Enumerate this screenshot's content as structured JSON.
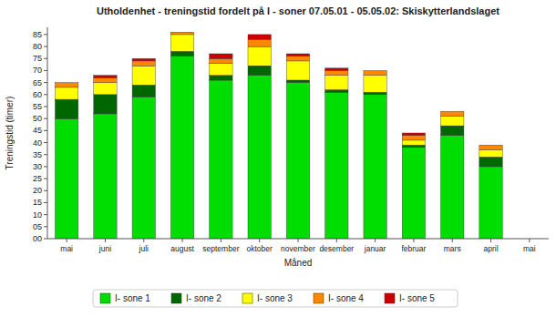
{
  "chart_data": {
    "type": "bar",
    "stacked": true,
    "title": "Utholdenhet - treningstid fordelt på I - soner 07.05.01 - 05.05.02: Skiskytterlandslaget",
    "xlabel": "Måned",
    "ylabel": "Treningstid (timer)",
    "categories": [
      "mai",
      "juni",
      "juli",
      "august",
      "september",
      "oktober",
      "november",
      "desember",
      "januar",
      "februar",
      "mars",
      "april",
      "mai"
    ],
    "series": [
      {
        "name": "I- sone 1",
        "color": "#00dd00",
        "values": [
          50,
          52,
          59,
          76,
          66,
          68,
          65,
          61,
          60,
          38,
          43,
          30,
          0
        ]
      },
      {
        "name": "I- sone 2",
        "color": "#006600",
        "values": [
          8,
          8,
          5,
          2,
          2,
          4,
          1,
          1,
          1,
          1,
          4,
          4,
          0
        ]
      },
      {
        "name": "I- sone 3",
        "color": "#ffff00",
        "values": [
          5,
          5,
          8,
          7,
          5,
          8,
          8,
          6,
          7,
          2,
          4,
          3,
          0
        ]
      },
      {
        "name": "I- sone 4",
        "color": "#ff8800",
        "values": [
          2,
          2,
          2,
          1,
          2,
          3,
          2,
          2,
          2,
          2,
          2,
          2,
          0
        ]
      },
      {
        "name": "I- sone 5",
        "color": "#cc0000",
        "values": [
          0,
          1,
          1,
          0,
          2,
          2,
          1,
          1,
          0,
          1,
          0,
          0,
          0
        ]
      }
    ],
    "ylim": [
      0,
      88
    ],
    "yticks": [
      {
        "value": 0,
        "label": "00"
      },
      {
        "value": 5,
        "label": "05"
      },
      10,
      15,
      20,
      25,
      30,
      35,
      40,
      45,
      50,
      55,
      60,
      65,
      70,
      75,
      80,
      85
    ],
    "grid": false,
    "legend": "bottom"
  }
}
